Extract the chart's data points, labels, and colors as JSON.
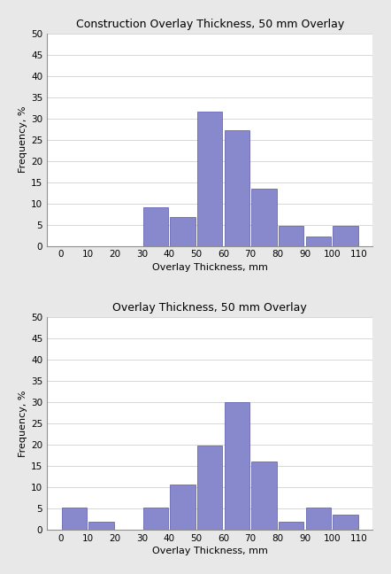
{
  "top": {
    "title": "Construction Overlay Thickness, 50 mm Overlay",
    "xlabel": "Overlay Thickness, mm",
    "ylabel": "Frequency, %",
    "values": [
      0,
      0,
      0,
      9.0,
      6.7,
      31.7,
      27.2,
      13.5,
      4.7,
      2.2,
      4.7,
      0
    ],
    "ylim": [
      0,
      50
    ],
    "yticks": [
      0,
      5,
      10,
      15,
      20,
      25,
      30,
      35,
      40,
      45,
      50
    ]
  },
  "bottom": {
    "title": "Overlay Thickness, 50 mm Overlay",
    "xlabel": "Overlay Thickness, mm",
    "ylabel": "Frequency, %",
    "values": [
      5.3,
      2.0,
      0,
      5.3,
      10.7,
      19.8,
      30.1,
      16.0,
      2.0,
      5.3,
      3.6,
      0
    ],
    "ylim": [
      0,
      50
    ],
    "yticks": [
      0,
      5,
      10,
      15,
      20,
      25,
      30,
      35,
      40,
      45,
      50
    ]
  },
  "bin_positions": [
    0,
    10,
    20,
    30,
    40,
    50,
    60,
    70,
    80,
    90,
    100,
    110
  ],
  "bin_width": 10,
  "bar_color": "#8888cc",
  "bar_edge_color": "#5555aa",
  "fig_bg": "#e8e8e8",
  "plot_bg": "#ffffff",
  "title_fontsize": 9,
  "label_fontsize": 8,
  "tick_fontsize": 7.5
}
